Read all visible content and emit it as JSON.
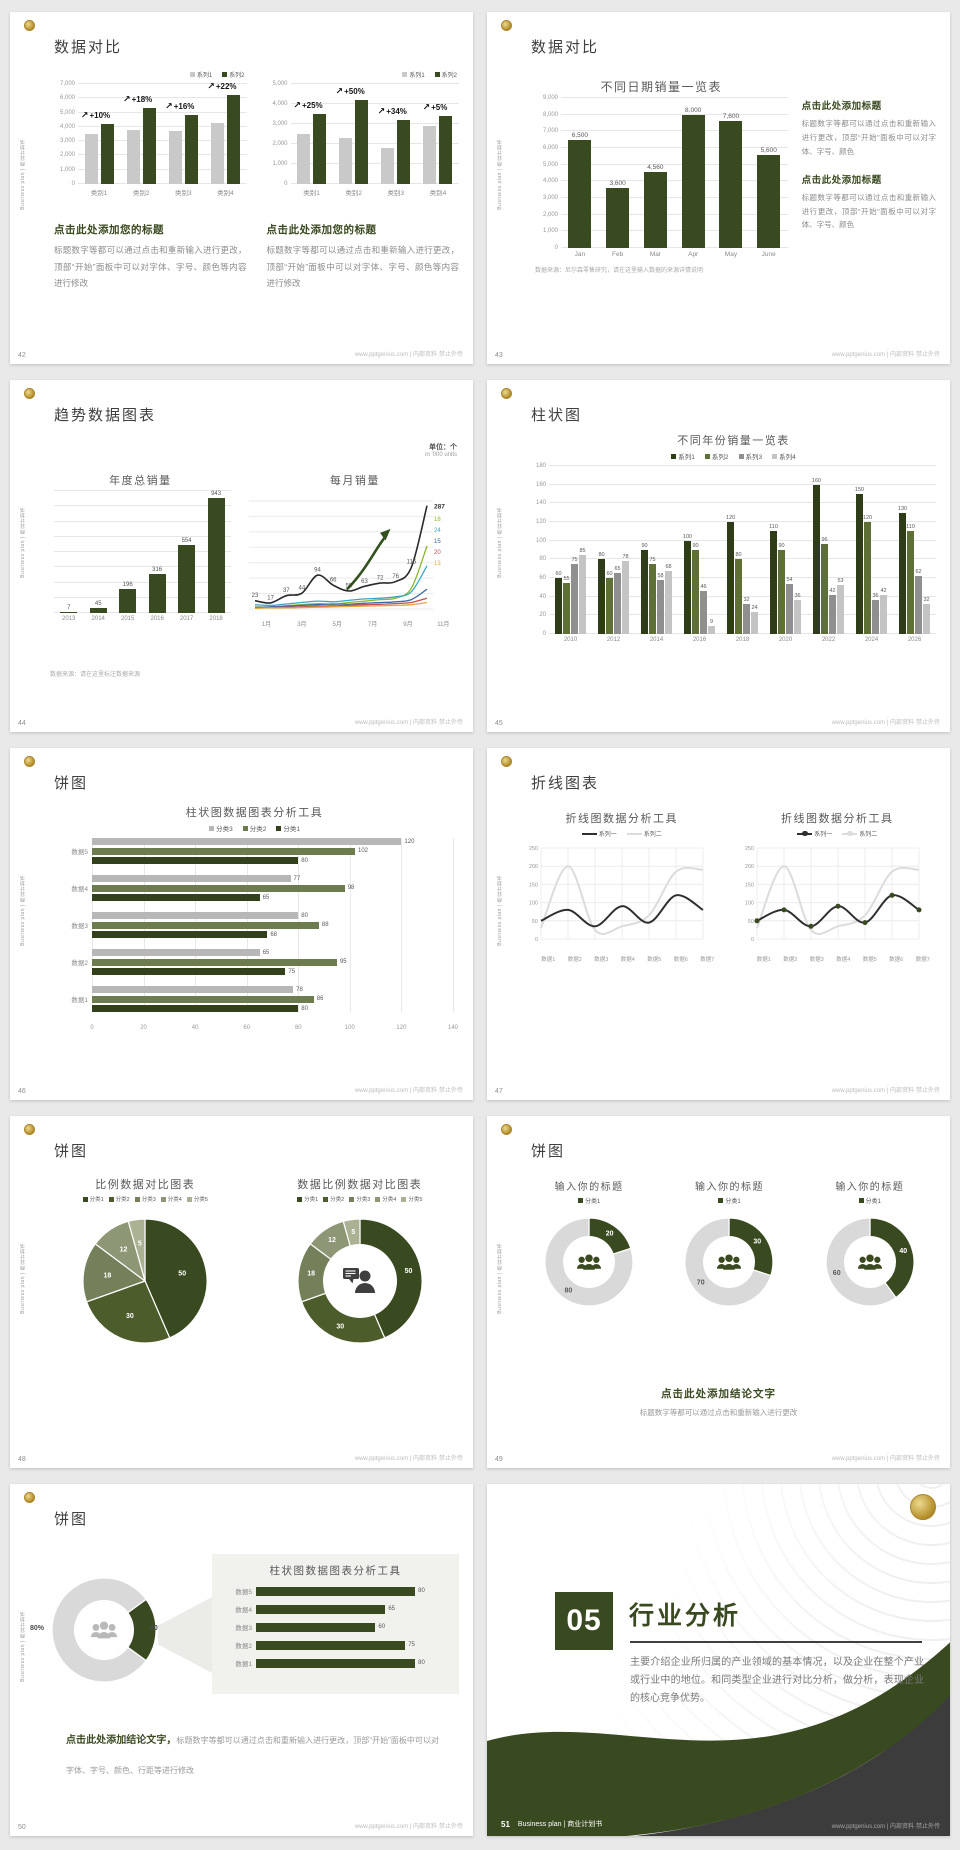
{
  "common": {
    "footer": "www.pptgenius.com | 内部资料·禁止外传",
    "vertical": "Business plan | 商业计划书"
  },
  "colors": {
    "dark_green": "#3a4a20",
    "olive": "#5f7036",
    "gray_bar": "#c9c9c9",
    "series3_gray": "#8f8f8f",
    "series4_gray": "#c4c4c4",
    "cat_light": "#b7b7b7",
    "donut_gray": "#d9d9d9",
    "line_dark": "#2f2f2f",
    "line_gray": "#dcdcdc",
    "pie": [
      "#3a4a20",
      "#4c5c2a",
      "#73805a",
      "#8d9775",
      "#aab293"
    ],
    "month_lines": [
      "#8cb725",
      "#38a6c6",
      "#3a68a8",
      "#c0504d",
      "#e8a33d"
    ]
  },
  "slides": [
    {
      "page": "42",
      "title": "数据对比",
      "charts": [
        {
          "type": "bar",
          "legend": [
            "系列1",
            "系列2"
          ],
          "yMax": 7000,
          "yStep": 1000,
          "categories": [
            "类别1",
            "类别2",
            "类别3",
            "类别4"
          ],
          "series": [
            {
              "name": "系列1",
              "values": [
                3500,
                3800,
                3700,
                4300
              ]
            },
            {
              "name": "系列2",
              "values": [
                4200,
                5300,
                4800,
                6200
              ]
            }
          ],
          "pct": [
            "+10%",
            "+18%",
            "+16%",
            "+22%"
          ]
        },
        {
          "type": "bar",
          "legend": [
            "系列1",
            "系列2"
          ],
          "yMax": 5000,
          "yStep": 1000,
          "categories": [
            "类别1",
            "类别2",
            "类别3",
            "类别4"
          ],
          "series": [
            {
              "name": "系列1",
              "values": [
                2500,
                2300,
                1800,
                2900
              ]
            },
            {
              "name": "系列2",
              "values": [
                3500,
                4200,
                3200,
                3400
              ]
            }
          ],
          "pct": [
            "+25%",
            "+50%",
            "+34%",
            "+5%"
          ]
        }
      ],
      "block_title": "点击此处添加您的标题",
      "block_body": "标题数字等都可以通过点击和重新输入进行更改，顶部“开始”面板中可以对字体、字号、颜色等内容进行修改"
    },
    {
      "page": "43",
      "title": "数据对比",
      "chart": {
        "type": "bar",
        "title": "不同日期销量一览表",
        "yMax": 9000,
        "yStep": 1000,
        "categories": [
          "Jan",
          "Feb",
          "Mar",
          "Apr",
          "May",
          "June"
        ],
        "values": [
          6500,
          3600,
          4560,
          8000,
          7600,
          5600
        ],
        "labels": [
          "6,500",
          "3,600",
          "4,560",
          "8,000",
          "7,600",
          "5,600"
        ]
      },
      "note": "数据来源：尼尔森零售研究，请在这里输入数据的来源详情说明",
      "blocks": [
        {
          "t": "点击此处添加标题",
          "b": "标题数字等都可以通过点击和重新输入进行更改，顶部“开始”面板中可以对字体、字号、颜色"
        },
        {
          "t": "点击此处添加标题",
          "b": "标题数字等都可以通过点击和重新输入进行更改，顶部“开始”面板中可以对字体、字号、颜色"
        }
      ]
    },
    {
      "page": "44",
      "title": "趋势数据图表",
      "unit1": "单位：个",
      "unit2": "in '000 units",
      "left": {
        "type": "bar",
        "title": "年度总销量",
        "categories": [
          "2013",
          "2014",
          "2015",
          "2016",
          "2017",
          "2018"
        ],
        "values": [
          7,
          45,
          196,
          316,
          554,
          943
        ]
      },
      "right": {
        "type": "line",
        "title": "每月销量",
        "xlabels": [
          "1月",
          "3月",
          "5月",
          "7月",
          "9月",
          "11月"
        ],
        "main": {
          "values": [
            23,
            17,
            37,
            44,
            94,
            66,
            50,
            63,
            72,
            76,
            116,
            287
          ]
        },
        "others": [
          {
            "end": "18",
            "values": [
              6,
              5,
              9,
              12,
              15,
              13,
              18,
              22,
              26,
              30,
              58,
              175
            ]
          },
          {
            "end": "24",
            "values": [
              12,
              10,
              14,
              18,
              22,
              20,
              24,
              28,
              30,
              34,
              48,
              120
            ]
          },
          {
            "end": "15",
            "values": [
              4,
              6,
              8,
              10,
              12,
              14,
              13,
              16,
              18,
              20,
              26,
              55
            ]
          },
          {
            "end": "20",
            "values": [
              3,
              4,
              5,
              6,
              8,
              9,
              10,
              12,
              13,
              15,
              18,
              30
            ]
          },
          {
            "end": "13",
            "values": [
              2,
              3,
              3,
              4,
              5,
              6,
              7,
              8,
              9,
              10,
              12,
              18
            ]
          }
        ]
      },
      "note": "数据来源：请在这里标注数据来源"
    },
    {
      "page": "45",
      "title": "柱状图",
      "chart": {
        "type": "bar",
        "title": "不同年份销量一览表",
        "legend": [
          "系列1",
          "系列2",
          "系列3",
          "系列4"
        ],
        "yMax": 180,
        "yStep": 20,
        "categories": [
          "2010",
          "2012",
          "2014",
          "2016",
          "2018",
          "2020",
          "2022",
          "2024",
          "2026"
        ],
        "series": [
          {
            "name": "系列1",
            "values": [
              60,
              80,
              90,
              100,
              120,
              110,
              160,
              150,
              130
            ]
          },
          {
            "name": "系列2",
            "values": [
              55,
              60,
              75,
              90,
              80,
              90,
              96,
              120,
              110
            ]
          },
          {
            "name": "系列3",
            "values": [
              75,
              65,
              58,
              46,
              32,
              54,
              42,
              36,
              62
            ]
          },
          {
            "name": "系列4",
            "values": [
              85,
              78,
              68,
              9,
              24,
              36,
              53,
              42,
              32
            ]
          }
        ]
      }
    },
    {
      "page": "46",
      "title": "饼图",
      "chart": {
        "type": "bar",
        "title": "柱状图数据图表分析工具",
        "legend": [
          "分类3",
          "分类2",
          "分类1"
        ],
        "xMax": 140,
        "xStep": 20,
        "categories": [
          "数据5",
          "数据4",
          "数据3",
          "数据2",
          "数据1"
        ],
        "series": [
          {
            "name": "分类3",
            "values": [
              120,
              77,
              80,
              65,
              78
            ]
          },
          {
            "name": "分类2",
            "values": [
              102,
              98,
              88,
              95,
              86
            ]
          },
          {
            "name": "分类1",
            "values": [
              80,
              65,
              68,
              75,
              80
            ]
          }
        ]
      }
    },
    {
      "page": "47",
      "title": "折线图表",
      "legend": [
        "系列一",
        "系列二"
      ],
      "cats": [
        "数据1",
        "数据2",
        "数据3",
        "数据4",
        "数据5",
        "数据6",
        "数据7"
      ],
      "yMax": 250,
      "yStep": 50,
      "s1": [
        50,
        80,
        35,
        90,
        45,
        120,
        80
      ],
      "s2": [
        30,
        200,
        25,
        35,
        65,
        185,
        190
      ],
      "charts": [
        {
          "type": "line",
          "title": "折线图数据分析工具",
          "markers": false
        },
        {
          "type": "line",
          "title": "折线图数据分析工具",
          "markers": true
        }
      ]
    },
    {
      "page": "48",
      "title": "饼图",
      "charts": [
        {
          "type": "pie",
          "title": "比例数据对比图表",
          "legend": [
            "分类1",
            "分类2",
            "分类3",
            "分类4",
            "分类5"
          ],
          "values": [
            50,
            30,
            18,
            12,
            5
          ],
          "donut": false
        },
        {
          "type": "pie",
          "title": "数据比例数据对比图表",
          "legend": [
            "分类1",
            "分类2",
            "分类3",
            "分类4",
            "分类5"
          ],
          "values": [
            50,
            30,
            18,
            12,
            5
          ],
          "donut": true
        }
      ]
    },
    {
      "page": "49",
      "title": "饼图",
      "donuts": [
        {
          "type": "pie",
          "title": "输入你的标题",
          "legend": "分类1",
          "value": 20,
          "rest": 80
        },
        {
          "type": "pie",
          "title": "输入你的标题",
          "legend": "分类1",
          "value": 30,
          "rest": 70
        },
        {
          "type": "pie",
          "title": "输入你的标题",
          "legend": "分类1",
          "value": 40,
          "rest": 60
        }
      ],
      "concl_title": "点击此处添加结论文字",
      "concl_body": "标题数字等都可以通过点击和重新输入进行更改"
    },
    {
      "page": "50",
      "title": "饼图",
      "donut": {
        "type": "pie",
        "main_label": "80%",
        "slice_label": "20%",
        "values": [
          20,
          80
        ]
      },
      "panel": {
        "title": "柱状图数据图表分析工具",
        "rows": [
          {
            "label": "数据5",
            "value": 80
          },
          {
            "label": "数据4",
            "value": 65
          },
          {
            "label": "数据3",
            "value": 60
          },
          {
            "label": "数据2",
            "value": 75
          },
          {
            "label": "数据1",
            "value": 80
          }
        ]
      },
      "concl_bold": "点击此处添加结论文字，",
      "concl_rest": "标题数字等都可以通过点击和重新输入进行更改，顶部“开始”面板中可以对字体、字号、颜色、行距等进行修改"
    },
    {
      "page": "51",
      "number": "05",
      "title": "行业分析",
      "body": "主要介绍企业所归属的产业领域的基本情况，以及企业在整个产业或行业中的地位。和同类型企业进行对比分析，做分析，表现企业的核心竞争优势。",
      "footer_brand": "Business plan | 商业计划书"
    }
  ]
}
